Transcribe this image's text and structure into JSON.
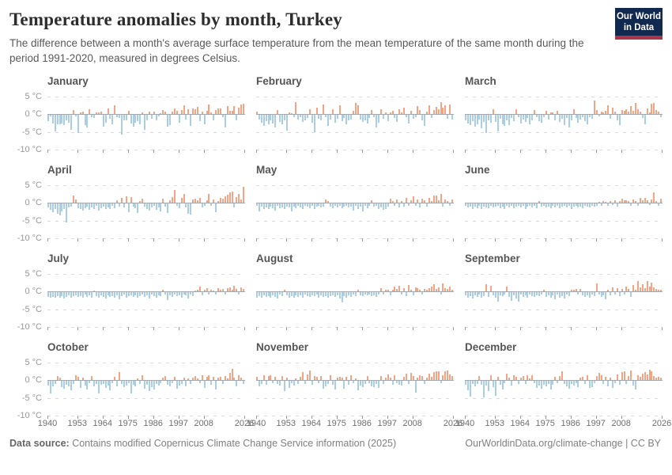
{
  "header": {
    "title": "Temperature anomalies by month, Turkey",
    "subtitle": "The difference between a month's average surface temperature from the mean temperature of the same month during the period 1991-2020, measured in degrees Celsius.",
    "logo": {
      "line1": "Our World",
      "line2": "in Data"
    }
  },
  "footer": {
    "source_label": "Data source:",
    "source_text": " Contains modified Copernicus Climate Change Service information (2025)",
    "link": "OurWorldinData.org/climate-change",
    "license": " | CC BY"
  },
  "colors": {
    "positive_bar": "#f2a584",
    "negative_bar": "#aacee3",
    "logo_bg": "#12294f",
    "logo_accent": "#a93648"
  },
  "axis": {
    "y_tick_labels": [
      "5 °C",
      "0 °C",
      "-5 °C",
      "-10 °C"
    ],
    "y_tick_values": [
      5,
      0,
      -5,
      -10
    ],
    "x_tick_years": [
      1940,
      1953,
      1964,
      1975,
      1986,
      1997,
      2008,
      2026
    ]
  },
  "chart_data": {
    "type": "bar",
    "x_start_year": 1940,
    "x_end_year": 2025,
    "ylim": [
      -10,
      6.5
    ],
    "grid": true,
    "unit": "°C",
    "months": [
      {
        "label": "January",
        "values": [
          -1.8,
          -0.4,
          -2.3,
          -4.7,
          -2.6,
          -2.7,
          -2.3,
          -2.9,
          -1.5,
          -2.1,
          -4.2,
          1.2,
          -0.4,
          -5.0,
          0.6,
          0.8,
          -2.9,
          -3.4,
          1.4,
          -0.5,
          -0.8,
          0.4,
          0.5,
          0.7,
          -3.2,
          -2.1,
          1.6,
          -1.0,
          -2.7,
          2.6,
          -0.6,
          -0.9,
          -5.4,
          -1.6,
          -1.5,
          1.0,
          -2.3,
          -3.3,
          -2.1,
          -1.7,
          -2.7,
          0.6,
          -4.1,
          -1.6,
          0.7,
          -1.0,
          0.8,
          -1.5,
          -0.4,
          0.3,
          1.1,
          0.7,
          -3.3,
          -2.8,
          0.8,
          1.6,
          0.9,
          -2.2,
          1.1,
          2.4,
          -1.3,
          1.5,
          -3.1,
          1.6,
          1.5,
          2.0,
          -1.8,
          0.8,
          -2.6,
          0.9,
          2.7,
          0.6,
          -1.5,
          1.1,
          1.6,
          1.7,
          -0.5,
          -3.5,
          2.3,
          0.9,
          1.0,
          2.3,
          -1.6,
          1.8,
          2.7,
          2.9
        ]
      },
      {
        "label": "February",
        "values": [
          0.8,
          -1.2,
          -2.1,
          -3.0,
          -1.8,
          -2.5,
          -1.5,
          -2.4,
          -3.6,
          1.1,
          -1.9,
          -2.6,
          -1.4,
          -4.4,
          0.4,
          0.3,
          -0.6,
          3.3,
          -1.2,
          -0.7,
          -2.0,
          -1.4,
          -0.9,
          1.5,
          -2.1,
          -4.8,
          1.8,
          -1.0,
          -1.5,
          2.8,
          -0.5,
          -3.1,
          -1.2,
          1.4,
          -2.2,
          -1.1,
          2.4,
          -1.8,
          -0.8,
          -2.7,
          -1.6,
          -1.2,
          1.0,
          3.1,
          2.6,
          -1.3,
          -2.0,
          -1.5,
          -2.4,
          -0.9,
          1.2,
          -0.5,
          -3.4,
          -2.1,
          1.3,
          -1.0,
          0.6,
          -1.7,
          0.4,
          1.0,
          -0.8,
          -1.9,
          1.4,
          0.5,
          1.8,
          -0.7,
          -2.4,
          0.9,
          -1.1,
          -0.6,
          2.2,
          1.1,
          -1.4,
          -3.0,
          0.7,
          2.6,
          -0.9,
          1.2,
          2.1,
          1.5,
          3.4,
          1.8,
          2.5,
          -1.0,
          2.7,
          -1.3
        ]
      },
      {
        "label": "March",
        "values": [
          -1.5,
          -2.4,
          -2.9,
          -1.8,
          -3.3,
          -2.6,
          -1.2,
          -3.8,
          -2.0,
          -5.0,
          -1.4,
          -2.2,
          1.3,
          -1.9,
          -4.6,
          -1.0,
          -2.5,
          -3.1,
          -1.6,
          -2.8,
          -0.9,
          -1.8,
          1.5,
          -0.6,
          -2.3,
          -1.2,
          -1.9,
          -0.8,
          -2.6,
          -1.4,
          1.2,
          -0.5,
          -1.7,
          -2.2,
          -0.7,
          1.0,
          -1.3,
          0.5,
          0.6,
          -1.5,
          0.9,
          -2.0,
          -1.1,
          -2.9,
          -0.8,
          -3.4,
          -1.6,
          1.4,
          -0.9,
          -2.1,
          -1.2,
          -0.5,
          -1.8,
          -2.7,
          -0.6,
          -1.1,
          3.8,
          1.2,
          -0.4,
          0.8,
          0.6,
          1.0,
          2.4,
          -1.0,
          1.8,
          0.7,
          -1.4,
          -2.8,
          1.1,
          0.9,
          1.5,
          0.8,
          2.3,
          1.0,
          3.2,
          1.3,
          0.7,
          -0.9,
          -2.6,
          1.6,
          0.5,
          2.9,
          3.1,
          1.1,
          0.8,
          -0.6
        ]
      },
      {
        "label": "April",
        "values": [
          -1.1,
          -1.8,
          -2.3,
          -1.5,
          -2.8,
          -3.2,
          -2.1,
          -1.4,
          -5.2,
          -1.0,
          -0.8,
          2.0,
          0.9,
          -1.2,
          -1.6,
          -2.0,
          -1.3,
          -0.9,
          -1.8,
          -1.1,
          -1.5,
          -0.7,
          -1.9,
          -1.2,
          -0.8,
          -1.6,
          -1.0,
          -1.4,
          -0.6,
          -1.2,
          0.8,
          -0.9,
          1.4,
          -1.0,
          1.9,
          -2.4,
          1.6,
          -0.8,
          -1.3,
          -2.7,
          0.6,
          1.2,
          -0.9,
          -1.5,
          -2.0,
          -1.1,
          -0.7,
          -1.8,
          -1.0,
          -2.2,
          1.1,
          -0.8,
          -2.6,
          0.8,
          1.6,
          3.6,
          -0.5,
          -1.2,
          1.4,
          2.5,
          -1.0,
          -2.8,
          -3.1,
          0.9,
          1.2,
          0.7,
          1.5,
          -1.1,
          -0.6,
          0.8,
          2.4,
          -0.7,
          1.0,
          -2.3,
          0.6,
          1.3,
          1.1,
          1.8,
          2.2,
          3.0,
          3.1,
          -1.0,
          1.6,
          2.6,
          0.9,
          4.6
        ]
      },
      {
        "label": "May",
        "values": [
          -0.6,
          -2.1,
          -0.9,
          -1.4,
          -1.1,
          -1.6,
          -0.8,
          -1.2,
          -1.9,
          -0.7,
          -1.3,
          -1.0,
          -1.5,
          -0.8,
          -1.1,
          -2.2,
          -0.9,
          -1.3,
          -0.7,
          -1.0,
          -1.6,
          -0.5,
          -0.9,
          -1.2,
          -0.6,
          -1.4,
          -0.8,
          -0.5,
          -1.1,
          -0.9,
          1.0,
          0.6,
          -0.8,
          -1.2,
          -0.7,
          -1.0,
          -0.6,
          -1.3,
          -0.9,
          -0.5,
          -1.1,
          -0.8,
          -2.0,
          -0.6,
          -1.5,
          -0.9,
          -2.1,
          -0.7,
          -1.2,
          -0.5,
          0.8,
          -0.9,
          -0.6,
          -1.6,
          -1.0,
          -1.8,
          -1.4,
          -0.8,
          1.2,
          0.5,
          -0.7,
          0.9,
          -1.1,
          0.6,
          -0.9,
          1.4,
          -0.5,
          0.8,
          1.8,
          -0.6,
          0.9,
          -1.0,
          1.2,
          0.7,
          -0.8,
          1.5,
          0.6,
          2.1,
          2.0,
          0.8,
          2.4,
          -0.9,
          1.0,
          0.5,
          -0.7,
          0.9
        ]
      },
      {
        "label": "June",
        "values": [
          -0.5,
          -1.1,
          -0.8,
          -1.4,
          -0.9,
          -1.2,
          -0.6,
          -1.5,
          -0.8,
          -1.0,
          -1.3,
          -0.7,
          -1.1,
          -0.9,
          -0.6,
          -1.2,
          -0.8,
          -1.6,
          -0.7,
          -1.0,
          -0.5,
          -1.3,
          -0.9,
          -0.7,
          -1.1,
          -0.6,
          -1.4,
          -0.8,
          -0.5,
          -1.0,
          -0.7,
          -1.2,
          0.4,
          -0.9,
          -0.6,
          -1.1,
          -0.8,
          -1.3,
          -0.7,
          -1.0,
          -0.6,
          -1.2,
          -0.9,
          -0.5,
          -1.1,
          -0.7,
          -1.4,
          -0.8,
          -0.6,
          -1.0,
          -0.9,
          -1.2,
          -0.5,
          -0.8,
          -1.1,
          -0.6,
          -0.9,
          -0.7,
          0.3,
          -0.5,
          0.4,
          0.3,
          -0.6,
          0.5,
          -0.4,
          0.7,
          -0.8,
          0.4,
          1.2,
          0.8,
          0.7,
          0.5,
          -0.6,
          1.0,
          0.6,
          -0.5,
          1.4,
          0.8,
          1.5,
          0.7,
          -0.4,
          0.9,
          3.0,
          0.6,
          -0.5,
          1.1
        ]
      },
      {
        "label": "July",
        "values": [
          -1.2,
          -1.5,
          -1.3,
          -1.6,
          -1.1,
          -1.4,
          -1.0,
          -1.7,
          -1.2,
          -0.9,
          -1.4,
          -1.1,
          -0.8,
          -1.3,
          -1.0,
          -1.5,
          -0.7,
          -1.2,
          -0.9,
          -1.4,
          0.3,
          -1.0,
          -1.6,
          -0.8,
          -1.2,
          -1.8,
          -0.9,
          -1.3,
          -1.0,
          -1.5,
          -0.8,
          -1.9,
          -1.1,
          -0.7,
          -1.4,
          -1.0,
          -0.8,
          -1.2,
          -0.9,
          -1.6,
          -1.1,
          -0.7,
          -1.3,
          -0.9,
          -1.8,
          -0.6,
          -1.0,
          -1.4,
          -0.8,
          -1.1,
          0.4,
          -0.7,
          -2.2,
          -0.9,
          -1.2,
          -0.6,
          -1.0,
          -0.8,
          -1.5,
          -0.5,
          -0.9,
          -1.7,
          -0.6,
          -1.1,
          0.3,
          0.6,
          1.5,
          -0.8,
          0.4,
          0.9,
          -0.6,
          0.5,
          0.3,
          -0.7,
          1.0,
          0.6,
          0.8,
          -0.5,
          0.9,
          1.1,
          0.5,
          1.6,
          0.8,
          -0.6,
          1.2,
          0.7
        ]
      },
      {
        "label": "August",
        "values": [
          -1.4,
          -1.1,
          -1.6,
          -0.9,
          -1.3,
          -1.0,
          -1.5,
          -0.8,
          -1.2,
          -1.8,
          -0.7,
          -1.1,
          0.4,
          -0.9,
          -1.4,
          -1.0,
          -1.6,
          -0.8,
          -1.2,
          -0.9,
          -1.5,
          -0.7,
          -1.0,
          -1.3,
          -0.8,
          -1.1,
          -0.6,
          -1.4,
          -0.9,
          -1.2,
          -1.0,
          -1.6,
          -1.1,
          -0.8,
          -1.3,
          -0.9,
          -1.7,
          -2.8,
          -1.0,
          -1.4,
          -0.8,
          -1.2,
          -0.6,
          -1.0,
          0.5,
          -0.8,
          -1.1,
          -0.7,
          -0.9,
          -0.6,
          -1.0,
          -0.8,
          -1.2,
          -0.5,
          0.9,
          -0.7,
          0.4,
          0.6,
          -0.9,
          0.5,
          1.3,
          0.7,
          1.7,
          -0.6,
          1.0,
          -1.1,
          1.8,
          0.5,
          -0.8,
          1.1,
          0.9,
          0.6,
          -0.5,
          0.7,
          0.4,
          1.0,
          1.4,
          2.0,
          0.8,
          1.2,
          -0.6,
          2.2,
          0.9,
          0.7,
          1.5,
          0.6
        ]
      },
      {
        "label": "September",
        "values": [
          -0.8,
          -1.5,
          -1.1,
          -1.8,
          -0.9,
          -1.3,
          -0.7,
          -1.6,
          -1.0,
          2.0,
          -1.2,
          1.6,
          -0.8,
          -1.4,
          -2.6,
          -0.9,
          -1.1,
          -0.6,
          1.5,
          -1.3,
          -2.4,
          -0.8,
          -1.7,
          -2.5,
          -0.7,
          -1.2,
          -0.9,
          -1.5,
          -0.6,
          -1.0,
          -1.3,
          -0.8,
          -1.1,
          -0.7,
          0.5,
          -1.2,
          -0.9,
          -1.6,
          -0.8,
          -1.9,
          -0.6,
          -1.4,
          -1.0,
          -1.7,
          -0.7,
          -1.1,
          0.6,
          0.4,
          0.8,
          -0.5,
          0.7,
          -0.9,
          -1.2,
          -0.8,
          -1.5,
          -0.6,
          -1.0,
          2.3,
          -0.7,
          -1.3,
          -0.9,
          -2.0,
          0.6,
          -0.8,
          1.2,
          -0.5,
          0.9,
          -1.1,
          0.7,
          -0.6,
          1.5,
          0.8,
          -1.3,
          1.8,
          0.6,
          2.9,
          1.2,
          2.0,
          0.9,
          3.0,
          1.4,
          2.4,
          1.1,
          0.8,
          0.6,
          0.5
        ]
      },
      {
        "label": "October",
        "values": [
          -1.2,
          -3.6,
          -1.5,
          -0.9,
          1.1,
          0.7,
          -1.8,
          -2.2,
          -1.0,
          -1.4,
          -2.6,
          -0.8,
          1.3,
          1.0,
          -1.9,
          0.8,
          -1.2,
          -2.4,
          -0.7,
          1.1,
          -1.6,
          -0.9,
          -3.4,
          -1.1,
          -0.8,
          -2.0,
          -1.3,
          -2.7,
          -0.6,
          1.0,
          -1.5,
          2.3,
          -0.9,
          -1.8,
          -1.2,
          -0.7,
          -3.5,
          -1.0,
          -1.6,
          0.6,
          -0.8,
          1.4,
          -2.2,
          -1.1,
          -2.9,
          -1.7,
          -2.4,
          -0.9,
          -1.3,
          -0.6,
          0.8,
          1.2,
          -1.0,
          -1.6,
          -0.7,
          1.0,
          -2.1,
          -1.2,
          -0.8,
          0.7,
          -1.4,
          0.5,
          -0.9,
          0.8,
          1.1,
          0.6,
          -0.7,
          1.3,
          -2.0,
          0.9,
          1.5,
          -1.1,
          1.0,
          -2.3,
          0.7,
          0.9,
          -0.8,
          1.2,
          0.6,
          2.0,
          3.2,
          0.8,
          -1.5,
          1.4,
          0.7,
          -0.9
        ]
      },
      {
        "label": "November",
        "values": [
          0.9,
          -1.5,
          -0.8,
          1.3,
          -1.1,
          1.2,
          1.4,
          -0.6,
          1.0,
          -0.9,
          -1.2,
          1.1,
          -2.8,
          0.8,
          -1.9,
          -0.7,
          -1.3,
          0.6,
          -0.8,
          1.0,
          2.2,
          -0.9,
          1.6,
          2.8,
          -1.0,
          1.2,
          0.9,
          -0.6,
          1.1,
          -2.1,
          -1.4,
          -0.8,
          1.3,
          -1.1,
          -2.4,
          0.7,
          1.0,
          0.8,
          -2.2,
          0.9,
          -1.0,
          1.4,
          -0.7,
          0.6,
          -2.5,
          -1.2,
          -1.7,
          -0.9,
          1.1,
          -0.6,
          -1.5,
          -1.8,
          -0.8,
          -2.0,
          1.2,
          -0.9,
          0.7,
          1.6,
          0.8,
          -1.1,
          1.3,
          -0.7,
          -1.0,
          -1.2,
          0.9,
          1.8,
          -0.8,
          2.0,
          1.1,
          -3.2,
          0.7,
          1.5,
          1.2,
          -0.9,
          0.8,
          1.9,
          1.0,
          2.3,
          2.4,
          2.6,
          -0.7,
          1.4,
          2.5,
          2.7,
          1.6,
          1.2
        ]
      },
      {
        "label": "December",
        "values": [
          -1.1,
          -2.6,
          -4.4,
          -0.9,
          -1.5,
          -0.8,
          1.2,
          -1.0,
          -4.6,
          -1.3,
          -2.8,
          1.5,
          -1.8,
          -4.2,
          0.9,
          -1.1,
          -2.4,
          -0.7,
          1.8,
          0.8,
          -1.2,
          1.4,
          1.0,
          -0.9,
          0.7,
          1.1,
          -0.8,
          1.3,
          0.6,
          1.5,
          -0.6,
          -1.9,
          -1.3,
          -2.2,
          -1.0,
          -1.6,
          -0.8,
          -2.4,
          -1.1,
          0.9,
          -0.7,
          1.2,
          2.5,
          -0.9,
          -1.4,
          -2.1,
          -0.8,
          -1.2,
          -0.6,
          -1.7,
          0.8,
          1.0,
          -0.9,
          1.4,
          -2.0,
          -1.8,
          -0.7,
          1.1,
          2.1,
          1.3,
          -0.8,
          0.9,
          -1.5,
          0.7,
          -1.9,
          -0.6,
          1.6,
          -1.0,
          2.3,
          2.5,
          -0.9,
          1.2,
          2.7,
          -1.3,
          -2.3,
          1.4,
          1.0,
          1.8,
          2.2,
          1.6,
          2.9,
          2.4,
          1.1,
          0.8,
          0.9,
          0.7
        ]
      }
    ]
  }
}
